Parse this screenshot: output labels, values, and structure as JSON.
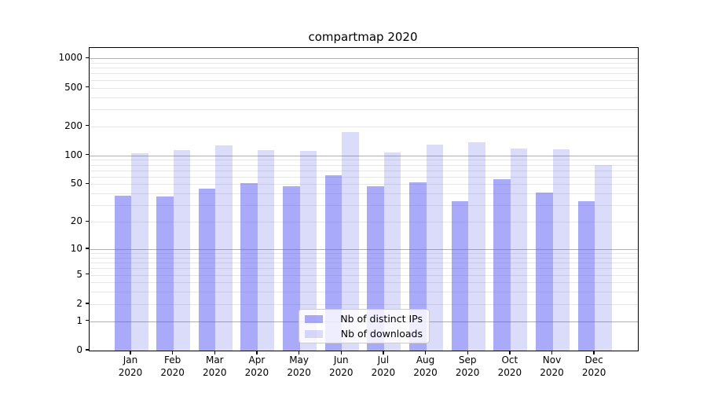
{
  "chart_data": {
    "type": "bar",
    "title": "compartmap 2020",
    "year": "2020",
    "categories": [
      "Jan",
      "Feb",
      "Mar",
      "Apr",
      "May",
      "Jun",
      "Jul",
      "Aug",
      "Sep",
      "Oct",
      "Nov",
      "Dec"
    ],
    "series": [
      {
        "name": "Nb of distinct IPs",
        "color": "#5555F780",
        "values": [
          38,
          37,
          45,
          51,
          48,
          62,
          48,
          52,
          33,
          56,
          41,
          33
        ]
      },
      {
        "name": "Nb of downloads",
        "color": "#5555E636",
        "values": [
          105,
          114,
          127,
          114,
          111,
          175,
          108,
          130,
          137,
          118,
          115,
          80
        ]
      }
    ],
    "yticks": [
      0,
      1,
      2,
      5,
      10,
      20,
      50,
      100,
      200,
      500,
      1000
    ],
    "scale": "log1p",
    "ylim": [
      0,
      1200
    ],
    "grid": {
      "major_color": "#b0b0b0",
      "minor_color": "#e7e7e7"
    },
    "legend_position": "lower center",
    "xlabel": "",
    "ylabel": ""
  }
}
